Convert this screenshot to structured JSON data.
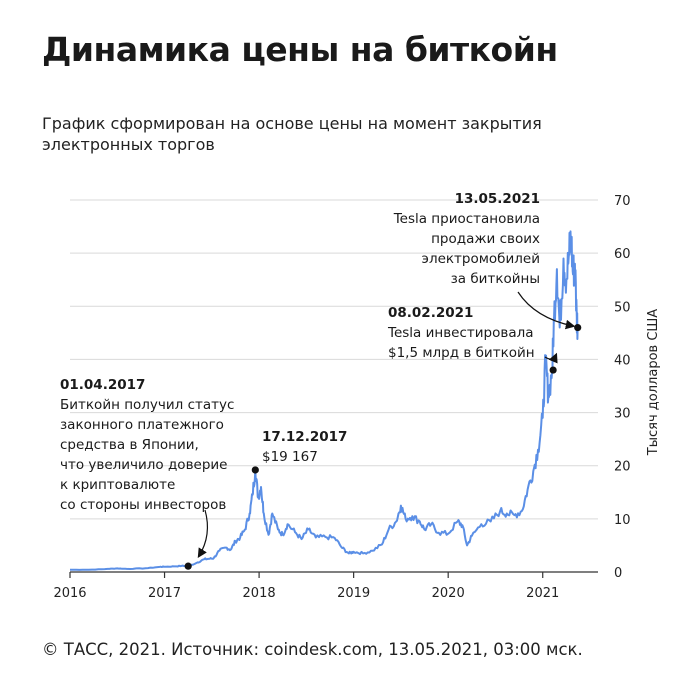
{
  "title": "Динамика цены на биткойн",
  "subtitle": "График сформирован на основе цены на момент закрытия электронных торгов",
  "footer": "© ТАСС, 2021. Источник: coindesk.com, 13.05.2021, 03:00 мск.",
  "colors": {
    "line": "#5b8fe6",
    "text": "#1a1a1a",
    "grid": "#d9d9d9",
    "marker": "#111111"
  },
  "chart_data": {
    "type": "line",
    "title": "",
    "xlabel": "",
    "ylabel": "Тысяч долларов США",
    "xlim": [
      2016.0,
      2021.5
    ],
    "ylim": [
      0,
      70
    ],
    "x_ticks": [
      2016,
      2017,
      2018,
      2019,
      2020,
      2021
    ],
    "y_ticks": [
      0,
      10,
      20,
      30,
      40,
      50,
      60,
      70
    ],
    "y_axis_side": "right",
    "grid": "horizontal",
    "series": [
      {
        "name": "",
        "points": [
          [
            2016.0,
            0.43
          ],
          [
            2016.2,
            0.42
          ],
          [
            2016.4,
            0.58
          ],
          [
            2016.5,
            0.67
          ],
          [
            2016.6,
            0.58
          ],
          [
            2016.8,
            0.7
          ],
          [
            2016.95,
            0.96
          ],
          [
            2017.0,
            1.0
          ],
          [
            2017.1,
            1.05
          ],
          [
            2017.18,
            1.15
          ],
          [
            2017.25,
            1.1
          ],
          [
            2017.35,
            1.8
          ],
          [
            2017.42,
            2.4
          ],
          [
            2017.48,
            2.5
          ],
          [
            2017.52,
            2.6
          ],
          [
            2017.58,
            4.0
          ],
          [
            2017.65,
            4.6
          ],
          [
            2017.7,
            4.2
          ],
          [
            2017.75,
            5.8
          ],
          [
            2017.8,
            6.5
          ],
          [
            2017.85,
            8.0
          ],
          [
            2017.9,
            11.0
          ],
          [
            2017.93,
            14.5
          ],
          [
            2017.96,
            19.2
          ],
          [
            2017.99,
            14.0
          ],
          [
            2018.02,
            16.0
          ],
          [
            2018.05,
            11.0
          ],
          [
            2018.1,
            7.0
          ],
          [
            2018.14,
            11.0
          ],
          [
            2018.2,
            8.0
          ],
          [
            2018.25,
            7.0
          ],
          [
            2018.3,
            9.0
          ],
          [
            2018.38,
            7.5
          ],
          [
            2018.45,
            6.2
          ],
          [
            2018.52,
            8.0
          ],
          [
            2018.6,
            6.5
          ],
          [
            2018.7,
            6.6
          ],
          [
            2018.8,
            6.4
          ],
          [
            2018.88,
            4.5
          ],
          [
            2018.95,
            3.5
          ],
          [
            2019.0,
            3.8
          ],
          [
            2019.1,
            3.5
          ],
          [
            2019.2,
            4.0
          ],
          [
            2019.3,
            5.2
          ],
          [
            2019.37,
            8.0
          ],
          [
            2019.45,
            9.5
          ],
          [
            2019.5,
            12.5
          ],
          [
            2019.55,
            10.0
          ],
          [
            2019.62,
            10.5
          ],
          [
            2019.7,
            9.5
          ],
          [
            2019.75,
            8.0
          ],
          [
            2019.82,
            9.0
          ],
          [
            2019.9,
            7.4
          ],
          [
            2020.0,
            7.2
          ],
          [
            2020.1,
            9.5
          ],
          [
            2020.15,
            8.8
          ],
          [
            2020.2,
            5.0
          ],
          [
            2020.25,
            6.8
          ],
          [
            2020.35,
            9.0
          ],
          [
            2020.45,
            9.5
          ],
          [
            2020.55,
            11.5
          ],
          [
            2020.62,
            11.0
          ],
          [
            2020.7,
            10.7
          ],
          [
            2020.78,
            11.5
          ],
          [
            2020.84,
            15.5
          ],
          [
            2020.9,
            19.0
          ],
          [
            2020.95,
            23.0
          ],
          [
            2021.0,
            29.0
          ],
          [
            2021.03,
            40.0
          ],
          [
            2021.06,
            33.0
          ],
          [
            2021.1,
            38.0
          ],
          [
            2021.12,
            48.0
          ],
          [
            2021.15,
            57.0
          ],
          [
            2021.18,
            46.0
          ],
          [
            2021.22,
            59.0
          ],
          [
            2021.25,
            55.0
          ],
          [
            2021.28,
            60.0
          ],
          [
            2021.3,
            63.0
          ],
          [
            2021.32,
            56.0
          ],
          [
            2021.34,
            58.0
          ],
          [
            2021.36,
            48.0
          ],
          [
            2021.37,
            46.0
          ]
        ]
      }
    ],
    "annotations": [
      {
        "date": "01.04.2017",
        "x": 2017.25,
        "y": 1.1,
        "text": [
          "Биткойн получил статус",
          "законного платежного",
          "средства в Японии,",
          "что увеличило доверие",
          "к криптовалюте",
          "со стороны инвесторов"
        ]
      },
      {
        "date": "17.12.2017",
        "x": 2017.96,
        "y": 19.2,
        "text": [
          "$19 167"
        ]
      },
      {
        "date": "08.02.2021",
        "x": 2021.11,
        "y": 38.0,
        "text": [
          "Tesla инвестировала",
          "$1,5 млрд в биткойн"
        ]
      },
      {
        "date": "13.05.2021",
        "x": 2021.37,
        "y": 46.0,
        "text": [
          "Tesla приостановила",
          "продажи своих",
          "электромобилей",
          "за биткойны"
        ]
      }
    ]
  }
}
